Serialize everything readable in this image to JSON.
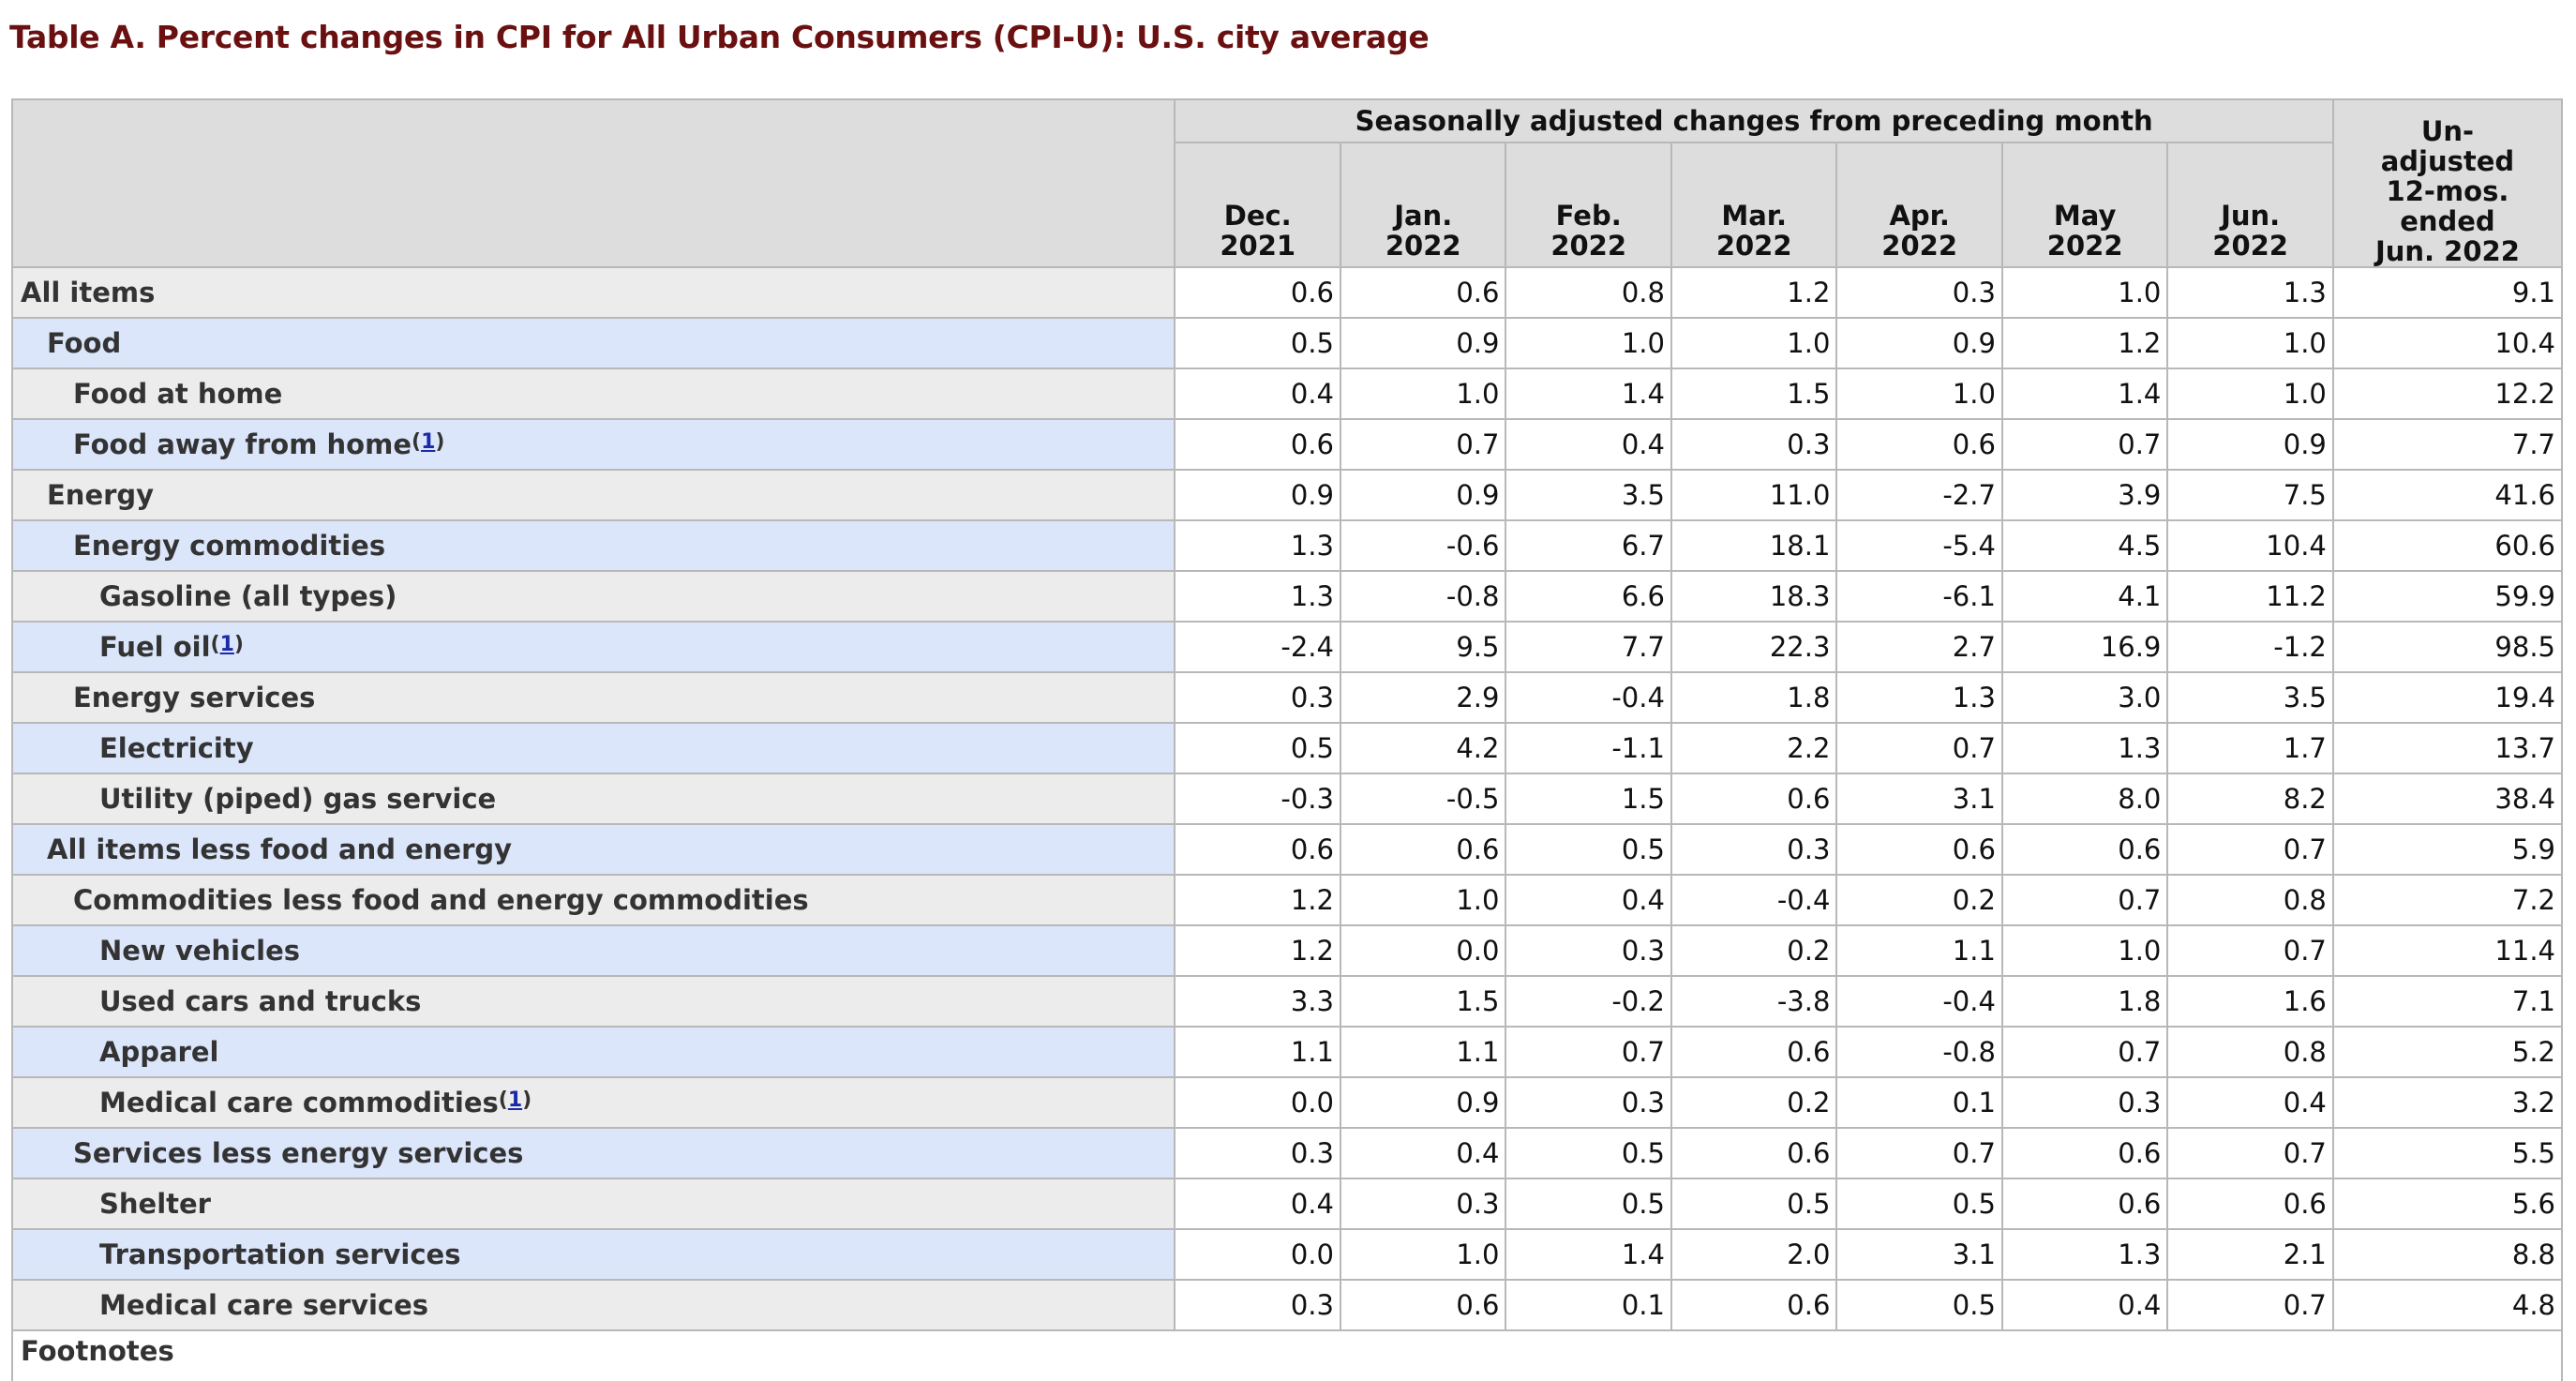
{
  "title": "Table A. Percent changes in CPI for All Urban Consumers (CPI-U): U.S. city average",
  "header": {
    "group_label": "Seasonally adjusted changes from preceding month",
    "months": [
      [
        "Dec.",
        "2021"
      ],
      [
        "Jan.",
        "2022"
      ],
      [
        "Feb.",
        "2022"
      ],
      [
        "Mar.",
        "2022"
      ],
      [
        "Apr.",
        "2022"
      ],
      [
        "May",
        "2022"
      ],
      [
        "Jun.",
        "2022"
      ]
    ],
    "unadjusted": [
      "Un-",
      "adjusted",
      "12-mos.",
      "ended",
      "Jun. 2022"
    ]
  },
  "rows": [
    {
      "label": "All items",
      "indent": 0,
      "footnote": "",
      "values": [
        "0.6",
        "0.6",
        "0.8",
        "1.2",
        "0.3",
        "1.0",
        "1.3",
        "9.1"
      ]
    },
    {
      "label": "Food",
      "indent": 1,
      "footnote": "",
      "values": [
        "0.5",
        "0.9",
        "1.0",
        "1.0",
        "0.9",
        "1.2",
        "1.0",
        "10.4"
      ]
    },
    {
      "label": "Food at home",
      "indent": 2,
      "footnote": "",
      "values": [
        "0.4",
        "1.0",
        "1.4",
        "1.5",
        "1.0",
        "1.4",
        "1.0",
        "12.2"
      ]
    },
    {
      "label": "Food away from home",
      "indent": 2,
      "footnote": "1",
      "values": [
        "0.6",
        "0.7",
        "0.4",
        "0.3",
        "0.6",
        "0.7",
        "0.9",
        "7.7"
      ]
    },
    {
      "label": "Energy",
      "indent": 1,
      "footnote": "",
      "values": [
        "0.9",
        "0.9",
        "3.5",
        "11.0",
        "-2.7",
        "3.9",
        "7.5",
        "41.6"
      ]
    },
    {
      "label": "Energy commodities",
      "indent": 2,
      "footnote": "",
      "values": [
        "1.3",
        "-0.6",
        "6.7",
        "18.1",
        "-5.4",
        "4.5",
        "10.4",
        "60.6"
      ]
    },
    {
      "label": "Gasoline (all types)",
      "indent": 3,
      "footnote": "",
      "values": [
        "1.3",
        "-0.8",
        "6.6",
        "18.3",
        "-6.1",
        "4.1",
        "11.2",
        "59.9"
      ]
    },
    {
      "label": "Fuel oil",
      "indent": 3,
      "footnote": "1",
      "values": [
        "-2.4",
        "9.5",
        "7.7",
        "22.3",
        "2.7",
        "16.9",
        "-1.2",
        "98.5"
      ]
    },
    {
      "label": "Energy services",
      "indent": 2,
      "footnote": "",
      "values": [
        "0.3",
        "2.9",
        "-0.4",
        "1.8",
        "1.3",
        "3.0",
        "3.5",
        "19.4"
      ]
    },
    {
      "label": "Electricity",
      "indent": 3,
      "footnote": "",
      "values": [
        "0.5",
        "4.2",
        "-1.1",
        "2.2",
        "0.7",
        "1.3",
        "1.7",
        "13.7"
      ]
    },
    {
      "label": "Utility (piped) gas service",
      "indent": 3,
      "footnote": "",
      "values": [
        "-0.3",
        "-0.5",
        "1.5",
        "0.6",
        "3.1",
        "8.0",
        "8.2",
        "38.4"
      ]
    },
    {
      "label": "All items less food and energy",
      "indent": 1,
      "footnote": "",
      "values": [
        "0.6",
        "0.6",
        "0.5",
        "0.3",
        "0.6",
        "0.6",
        "0.7",
        "5.9"
      ]
    },
    {
      "label": "Commodities less food and energy commodities",
      "indent": 2,
      "footnote": "",
      "values": [
        "1.2",
        "1.0",
        "0.4",
        "-0.4",
        "0.2",
        "0.7",
        "0.8",
        "7.2"
      ]
    },
    {
      "label": "New vehicles",
      "indent": 3,
      "footnote": "",
      "values": [
        "1.2",
        "0.0",
        "0.3",
        "0.2",
        "1.1",
        "1.0",
        "0.7",
        "11.4"
      ]
    },
    {
      "label": "Used cars and trucks",
      "indent": 3,
      "footnote": "",
      "values": [
        "3.3",
        "1.5",
        "-0.2",
        "-3.8",
        "-0.4",
        "1.8",
        "1.6",
        "7.1"
      ]
    },
    {
      "label": "Apparel",
      "indent": 3,
      "footnote": "",
      "values": [
        "1.1",
        "1.1",
        "0.7",
        "0.6",
        "-0.8",
        "0.7",
        "0.8",
        "5.2"
      ]
    },
    {
      "label": "Medical care commodities",
      "indent": 3,
      "footnote": "1",
      "values": [
        "0.0",
        "0.9",
        "0.3",
        "0.2",
        "0.1",
        "0.3",
        "0.4",
        "3.2"
      ]
    },
    {
      "label": "Services less energy services",
      "indent": 2,
      "footnote": "",
      "values": [
        "0.3",
        "0.4",
        "0.5",
        "0.6",
        "0.7",
        "0.6",
        "0.7",
        "5.5"
      ]
    },
    {
      "label": "Shelter",
      "indent": 3,
      "footnote": "",
      "values": [
        "0.4",
        "0.3",
        "0.5",
        "0.5",
        "0.5",
        "0.6",
        "0.6",
        "5.6"
      ]
    },
    {
      "label": "Transportation services",
      "indent": 3,
      "footnote": "",
      "values": [
        "0.0",
        "1.0",
        "1.4",
        "2.0",
        "3.1",
        "1.3",
        "2.1",
        "8.8"
      ]
    },
    {
      "label": "Medical care services",
      "indent": 3,
      "footnote": "",
      "values": [
        "0.3",
        "0.6",
        "0.1",
        "0.6",
        "0.5",
        "0.4",
        "0.7",
        "4.8"
      ]
    }
  ],
  "footnotes_label": "Footnotes",
  "colors": {
    "title": "#6b1010",
    "header_bg": "#dddddd",
    "row_label_gray": "#ececec",
    "row_label_blue": "#dce6fb",
    "footnote_link": "#1a2aa8",
    "border": "#b8b8b8"
  }
}
